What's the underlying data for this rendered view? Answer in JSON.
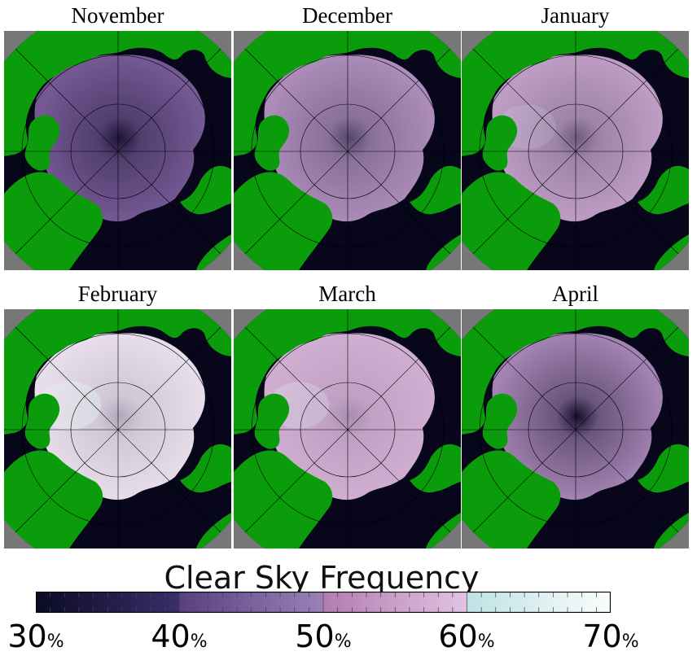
{
  "panels": [
    {
      "title": "November",
      "clear_level": 0.15,
      "pole_dark": 0.85
    },
    {
      "title": "December",
      "clear_level": 0.45,
      "pole_dark": 0.55
    },
    {
      "title": "January",
      "clear_level": 0.55,
      "pole_dark": 0.45
    },
    {
      "title": "February",
      "clear_level": 0.8,
      "pole_dark": 0.25
    },
    {
      "title": "March",
      "clear_level": 0.65,
      "pole_dark": 0.2
    },
    {
      "title": "April",
      "clear_level": 0.4,
      "pole_dark": 0.95
    }
  ],
  "legend": {
    "title": "Clear Sky Frequency",
    "ticks": [
      {
        "value": "30",
        "unit": "%"
      },
      {
        "value": "40",
        "unit": "%"
      },
      {
        "value": "50",
        "unit": "%"
      },
      {
        "value": "60",
        "unit": "%"
      },
      {
        "value": "70",
        "unit": "%"
      }
    ],
    "range": [
      30,
      70
    ]
  },
  "colors": {
    "land": "#0a9c0a",
    "ocean_low": "#07061a",
    "band_30_40": [
      "#0b0a26",
      "#3a2f6a"
    ],
    "band_40_50": [
      "#5a3f80",
      "#9a82b8"
    ],
    "band_50_60": [
      "#b27cb0",
      "#e2c2e2"
    ],
    "band_60_70": [
      "#bfe2e4",
      "#fafcfc"
    ],
    "outside": "#777777"
  }
}
